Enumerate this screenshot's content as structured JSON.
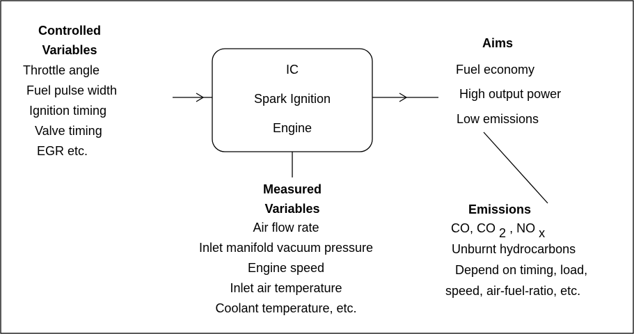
{
  "controlled": {
    "title": [
      "Controlled",
      "Variables"
    ],
    "items": [
      "Throttle angle",
      "Fuel pulse width",
      "Ignition timing",
      "Valve timing",
      "EGR etc."
    ]
  },
  "engine": {
    "lines": [
      "IC",
      "Spark Ignition",
      "Engine"
    ]
  },
  "measured": {
    "title": [
      "Measured",
      "Variables"
    ],
    "items": [
      "Air flow rate",
      "Inlet manifold vacuum pressure",
      "Engine speed",
      "Inlet air temperature",
      "Coolant temperature, etc."
    ]
  },
  "aims": {
    "title": "Aims",
    "items": [
      "Fuel economy",
      "High output power",
      "Low emissions"
    ]
  },
  "emissions": {
    "title": "Emissions",
    "formula": [
      "CO, CO",
      "2",
      ", NO",
      "x"
    ],
    "items": [
      "Unburnt hydrocarbons",
      "Depend on timing, load,",
      "speed, air-fuel-ratio, etc."
    ]
  }
}
